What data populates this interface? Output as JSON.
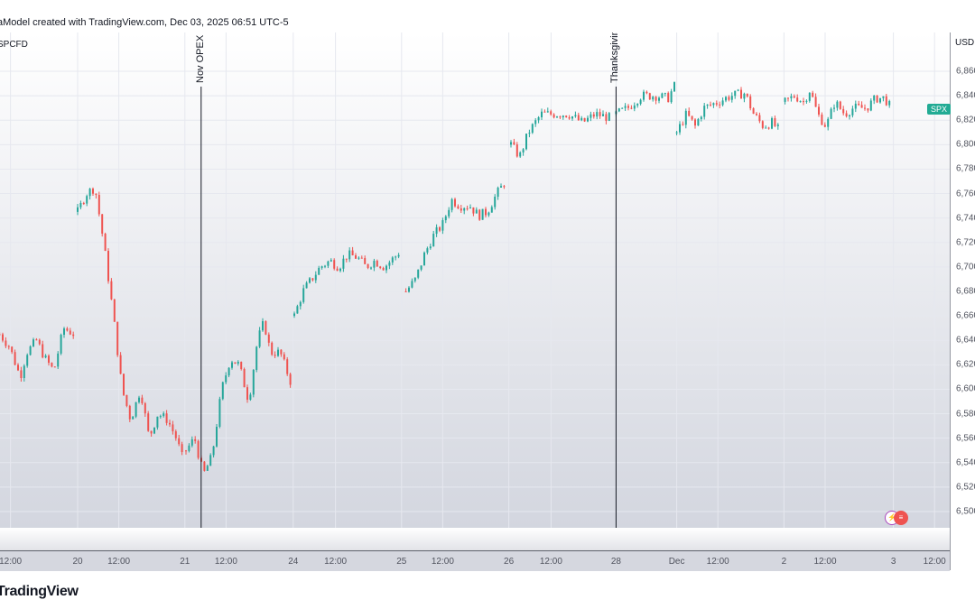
{
  "header": {
    "caption": "aModel created with TradingView.com, Dec 03, 2025 06:51 UTC-5"
  },
  "symbol": "SPCFD",
  "currency": "USD",
  "price_badge": "SPX",
  "footer": {
    "logo": "TradingView"
  },
  "colors": {
    "up": "#26a69a",
    "down": "#ef5350",
    "badge": "#22ab94"
  },
  "event_icons": [
    "lightning-icon",
    "us-flag-icon"
  ],
  "chart_data": {
    "type": "candlestick",
    "title": "SPCFD",
    "ylabel": "USD",
    "ylim": [
      6490,
      6870
    ],
    "y_ticks": [
      "6,860",
      "6,840",
      "6,820",
      "6,800",
      "6,780",
      "6,760",
      "6,740",
      "6,720",
      "6,700",
      "6,680",
      "6,660",
      "6,640",
      "6,620",
      "6,600",
      "6,580",
      "6,560",
      "6,540",
      "6,520",
      "6,500"
    ],
    "y_tick_values": [
      6860,
      6840,
      6820,
      6800,
      6780,
      6760,
      6740,
      6720,
      6700,
      6680,
      6660,
      6640,
      6620,
      6600,
      6580,
      6560,
      6540,
      6520,
      6500
    ],
    "x_unit": "trading days from Nov 20 session open",
    "x_ticks": [
      {
        "t": -0.62,
        "label": "12:00"
      },
      {
        "t": 0,
        "label": "20"
      },
      {
        "t": 0.38,
        "label": "12:00"
      },
      {
        "t": 0.99,
        "label": "21"
      },
      {
        "t": 1.37,
        "label": "12:00"
      },
      {
        "t": 1.99,
        "label": "24"
      },
      {
        "t": 2.38,
        "label": "12:00"
      },
      {
        "t": 2.99,
        "label": "25"
      },
      {
        "t": 3.37,
        "label": "12:00"
      },
      {
        "t": 3.98,
        "label": "26"
      },
      {
        "t": 4.37,
        "label": "12:00"
      },
      {
        "t": 4.97,
        "label": "28"
      },
      {
        "t": 5.53,
        "label": "Dec"
      },
      {
        "t": 5.91,
        "label": "12:00"
      },
      {
        "t": 6.52,
        "label": "2"
      },
      {
        "t": 6.9,
        "label": "12:00"
      },
      {
        "t": 7.53,
        "label": "3"
      },
      {
        "t": 7.91,
        "label": "12:00"
      }
    ],
    "events": [
      {
        "t": 1.14,
        "label": "Nov OPEX"
      },
      {
        "t": 4.97,
        "label": "Thanksgiving"
      }
    ],
    "last_price": 6828,
    "sessions": [
      [
        [
          -0.72,
          6645
        ],
        [
          -0.63,
          6635
        ],
        [
          -0.53,
          6610
        ],
        [
          -0.47,
          6630
        ],
        [
          -0.38,
          6640
        ],
        [
          -0.3,
          6625
        ],
        [
          -0.22,
          6615
        ],
        [
          -0.13,
          6650
        ],
        [
          -0.03,
          6645
        ]
      ],
      [
        [
          0,
          6745
        ],
        [
          0.08,
          6760
        ],
        [
          0.16,
          6765
        ],
        [
          0.24,
          6720
        ],
        [
          0.33,
          6660
        ],
        [
          0.41,
          6600
        ],
        [
          0.49,
          6575
        ],
        [
          0.58,
          6600
        ],
        [
          0.66,
          6560
        ],
        [
          0.74,
          6580
        ],
        [
          0.83,
          6575
        ],
        [
          0.91,
          6560
        ],
        [
          0.98,
          6540
        ]
      ],
      [
        [
          1.0,
          6550
        ],
        [
          1.08,
          6560
        ],
        [
          1.16,
          6530
        ],
        [
          1.24,
          6545
        ],
        [
          1.33,
          6600
        ],
        [
          1.41,
          6625
        ],
        [
          1.49,
          6620
        ],
        [
          1.58,
          6590
        ],
        [
          1.66,
          6640
        ],
        [
          1.72,
          6655
        ],
        [
          1.78,
          6630
        ],
        [
          1.87,
          6630
        ],
        [
          1.97,
          6605
        ]
      ],
      [
        [
          2.0,
          6660
        ],
        [
          2.08,
          6680
        ],
        [
          2.16,
          6690
        ],
        [
          2.24,
          6700
        ],
        [
          2.33,
          6705
        ],
        [
          2.41,
          6700
        ],
        [
          2.49,
          6710
        ],
        [
          2.58,
          6708
        ],
        [
          2.66,
          6700
        ],
        [
          2.74,
          6705
        ],
        [
          2.83,
          6700
        ],
        [
          2.95,
          6710
        ],
        [
          2.99,
          6715
        ]
      ],
      [
        [
          3.03,
          6680
        ],
        [
          3.12,
          6690
        ],
        [
          3.2,
          6710
        ],
        [
          3.28,
          6725
        ],
        [
          3.37,
          6735
        ],
        [
          3.45,
          6755
        ],
        [
          3.53,
          6750
        ],
        [
          3.62,
          6750
        ],
        [
          3.7,
          6742
        ],
        [
          3.78,
          6745
        ],
        [
          3.87,
          6760
        ],
        [
          3.95,
          6770
        ]
      ],
      [
        [
          4.0,
          6800
        ],
        [
          4.08,
          6790
        ],
        [
          4.16,
          6810
        ],
        [
          4.28,
          6825
        ],
        [
          4.41,
          6825
        ],
        [
          4.53,
          6825
        ],
        [
          4.66,
          6818
        ],
        [
          4.78,
          6825
        ],
        [
          4.91,
          6822
        ]
      ],
      [
        [
          4.97,
          6825
        ],
        [
          5.08,
          6830
        ],
        [
          5.2,
          6840
        ],
        [
          5.33,
          6840
        ],
        [
          5.45,
          6838
        ],
        [
          5.51,
          6848
        ]
      ],
      [
        [
          5.53,
          6810
        ],
        [
          5.62,
          6825
        ],
        [
          5.7,
          6815
        ],
        [
          5.78,
          6830
        ],
        [
          5.91,
          6835
        ],
        [
          6.03,
          6840
        ],
        [
          6.16,
          6842
        ],
        [
          6.24,
          6825
        ],
        [
          6.33,
          6815
        ],
        [
          6.41,
          6818
        ],
        [
          6.49,
          6810
        ]
      ],
      [
        [
          6.53,
          6835
        ],
        [
          6.62,
          6840
        ],
        [
          6.7,
          6835
        ],
        [
          6.76,
          6845
        ],
        [
          6.83,
          6825
        ],
        [
          6.91,
          6815
        ],
        [
          6.99,
          6835
        ],
        [
          7.08,
          6825
        ],
        [
          7.16,
          6830
        ],
        [
          7.28,
          6830
        ],
        [
          7.37,
          6838
        ],
        [
          7.45,
          6838
        ],
        [
          7.52,
          6828
        ]
      ]
    ]
  }
}
